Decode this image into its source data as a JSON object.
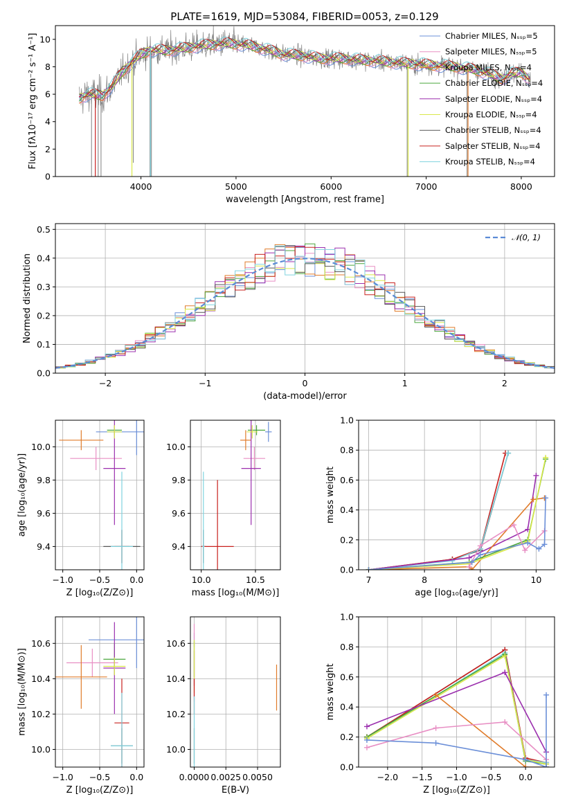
{
  "figure": {
    "title": "PLATE=1619, MJD=53084, FIBERID=0053, z=0.129"
  },
  "chart_data": [
    {
      "id": "spectrum",
      "type": "line",
      "xlabel": "wavelength [Angstrom, rest frame]",
      "ylabel": "Flux [fλ10⁻¹⁷ erg cm⁻² s⁻¹ A⁻¹]",
      "xlim": [
        3100,
        8350
      ],
      "ylim": [
        0,
        11
      ],
      "xticks": [
        4000,
        5000,
        6000,
        7000,
        8000
      ],
      "yticks": [
        0,
        2,
        4,
        6,
        8,
        10
      ],
      "grid": false,
      "legend_position": "right",
      "series": [
        {
          "name": "Chabrier MILES, Nₛₛₚ=5",
          "color": "#6b8fd8"
        },
        {
          "name": "Salpeter MILES, Nₛₛₚ=5",
          "color": "#e88fc4"
        },
        {
          "name": "Kroupa MILES, Nₛₛₚ=4",
          "color": "#e07b2a"
        },
        {
          "name": "Chabrier ELODIE, Nₛₛₚ=4",
          "color": "#4aa63c"
        },
        {
          "name": "Salpeter ELODIE, Nₛₛₚ=4",
          "color": "#9b2fae"
        },
        {
          "name": "Kroupa ELODIE, Nₛₛₚ=4",
          "color": "#d9e84a"
        },
        {
          "name": "Chabrier STELIB, Nₛₛₚ=4",
          "color": "#555555"
        },
        {
          "name": "Salpeter STELIB, Nₛₛₚ=4",
          "color": "#c8201e"
        },
        {
          "name": "Kroupa STELIB, Nₛₛₚ=4",
          "color": "#7fd3df"
        }
      ],
      "data_color": "#7f7f7f",
      "continuum": {
        "x": [
          3350,
          3450,
          3600,
          3700,
          3800,
          3900,
          4000,
          4100,
          4300,
          4500,
          4700,
          4900,
          5100,
          5300,
          5500,
          5700,
          5900,
          6100,
          6300,
          6500,
          6700,
          6900,
          7100,
          7300,
          7500,
          7700,
          7800,
          7900,
          8000,
          8100
        ],
        "y": [
          5.7,
          6.0,
          5.9,
          6.6,
          7.6,
          8.3,
          8.9,
          9.2,
          9.2,
          9.4,
          9.6,
          9.7,
          9.6,
          9.3,
          8.9,
          8.8,
          8.6,
          8.6,
          8.5,
          8.4,
          8.3,
          8.2,
          8.1,
          8.0,
          7.8,
          7.4,
          7.1,
          7.5,
          7.6,
          7.0
        ]
      }
    },
    {
      "id": "residuals",
      "type": "line",
      "xlabel": "(data-model)/error",
      "ylabel": "Normed distribution",
      "xlim": [
        -2.5,
        2.5
      ],
      "ylim": [
        0,
        0.52
      ],
      "xticks": [
        -2,
        -1,
        0,
        1,
        2
      ],
      "yticks": [
        0.0,
        0.1,
        0.2,
        0.3,
        0.4,
        0.5
      ],
      "grid": true,
      "legend_position": "top-right",
      "series": [
        {
          "name": "𝒩(0, 1)",
          "color": "#5b8bd6",
          "style": "dashed"
        }
      ]
    },
    {
      "id": "age-vs-Z",
      "type": "scatter",
      "xlabel": "Z [log₁₀(Z/Z⊙)]",
      "ylabel": "age  [log₁₀(age/yr)]",
      "xlim": [
        -1.1,
        0.1
      ],
      "ylim": [
        9.26,
        10.16
      ],
      "xticks": [
        -1.0,
        -0.5,
        0.0
      ],
      "yticks": [
        9.4,
        9.6,
        9.8,
        10.0
      ],
      "grid": true,
      "points": [
        {
          "color": "#6b8fd8",
          "x": 0.0,
          "y": 10.09,
          "xerr": 0.55,
          "yerr": 0.14
        },
        {
          "color": "#e88fc4",
          "x": -0.55,
          "y": 9.93,
          "xerr": 0.35,
          "yerr": 0.07
        },
        {
          "color": "#e07b2a",
          "x": -0.75,
          "y": 10.04,
          "xerr": 0.3,
          "yerr": 0.06
        },
        {
          "color": "#4aa63c",
          "x": -0.3,
          "y": 10.1,
          "xerr": 0.1,
          "yerr": 0.03
        },
        {
          "color": "#9b2fae",
          "x": -0.3,
          "y": 9.87,
          "xerr": 0.15,
          "yerr": 0.34
        },
        {
          "color": "#d9e84a",
          "x": -0.3,
          "y": 10.09,
          "xerr": 0.1,
          "yerr": 0.04
        },
        {
          "color": "#555555",
          "x": -0.2,
          "y": 9.4,
          "xerr": 0.25,
          "yerr": 0.1
        },
        {
          "color": "#c8201e",
          "x": -0.2,
          "y": 9.4,
          "xerr": 0.1,
          "yerr": 0.1
        },
        {
          "color": "#7fd3df",
          "x": -0.2,
          "y": 9.4,
          "xerr": 0.15,
          "yerr": 0.45
        }
      ]
    },
    {
      "id": "age-vs-mass",
      "type": "scatter",
      "xlabel": "mass [log₁₀(M/M⊙)]",
      "ylabel": "",
      "xlim": [
        9.9,
        10.73
      ],
      "ylim": [
        9.26,
        10.16
      ],
      "xticks": [
        10.0,
        10.5
      ],
      "yticks": [
        9.4,
        9.6,
        9.8,
        10.0
      ],
      "grid": true,
      "points": [
        {
          "color": "#6b8fd8",
          "x": 10.62,
          "y": 10.09,
          "xerr": 0.03,
          "yerr": 0.06
        },
        {
          "color": "#e88fc4",
          "x": 10.49,
          "y": 9.93,
          "xerr": 0.1,
          "yerr": 0.07
        },
        {
          "color": "#e07b2a",
          "x": 10.41,
          "y": 10.04,
          "xerr": 0.05,
          "yerr": 0.06
        },
        {
          "color": "#4aa63c",
          "x": 10.51,
          "y": 10.1,
          "xerr": 0.08,
          "yerr": 0.03
        },
        {
          "color": "#9b2fae",
          "x": 10.46,
          "y": 9.87,
          "xerr": 0.09,
          "yerr": 0.34
        },
        {
          "color": "#d9e84a",
          "x": 10.47,
          "y": 10.09,
          "xerr": 0.05,
          "yerr": 0.04
        },
        {
          "color": "#555555",
          "x": 10.02,
          "y": 9.4,
          "xerr": 0.02,
          "yerr": 0.1
        },
        {
          "color": "#c8201e",
          "x": 10.15,
          "y": 9.4,
          "xerr": 0.15,
          "yerr": 0.4
        },
        {
          "color": "#7fd3df",
          "x": 10.02,
          "y": 9.4,
          "xerr": 0.01,
          "yerr": 0.45
        }
      ]
    },
    {
      "id": "weight-vs-age",
      "type": "line",
      "xlabel": "age  [log₁₀(age/yr)]",
      "ylabel": "mass weight",
      "xlim": [
        6.82,
        10.33
      ],
      "ylim": [
        0,
        1
      ],
      "xticks": [
        7,
        8,
        9,
        10
      ],
      "yticks": [
        0.0,
        0.2,
        0.4,
        0.6,
        0.8,
        1.0
      ],
      "grid": true,
      "series": [
        {
          "color": "#555555",
          "x": [
            7.0,
            8.5,
            9.0,
            9.5
          ],
          "y": [
            0.0,
            0.07,
            0.13,
            0.78
          ]
        },
        {
          "color": "#c8201e",
          "x": [
            7.0,
            8.5,
            9.0,
            9.45
          ],
          "y": [
            0.0,
            0.07,
            0.14,
            0.78
          ]
        },
        {
          "color": "#7fd3df",
          "x": [
            7.0,
            8.5,
            9.0,
            9.5
          ],
          "y": [
            0.0,
            0.06,
            0.14,
            0.78
          ]
        },
        {
          "color": "#9b2fae",
          "x": [
            7.0,
            8.8,
            9.85,
            10.0
          ],
          "y": [
            0.0,
            0.08,
            0.27,
            0.63
          ]
        },
        {
          "color": "#e07b2a",
          "x": [
            7.0,
            8.8,
            8.85,
            9.95,
            10.15
          ],
          "y": [
            0.0,
            0.02,
            0.0,
            0.47,
            0.48
          ]
        },
        {
          "color": "#4aa63c",
          "x": [
            7.0,
            8.8,
            9.85,
            10.17
          ],
          "y": [
            0.0,
            0.05,
            0.2,
            0.74
          ]
        },
        {
          "color": "#d9e84a",
          "x": [
            7.0,
            8.8,
            9.85,
            10.17
          ],
          "y": [
            0.0,
            0.04,
            0.19,
            0.75
          ]
        },
        {
          "color": "#e88fc4",
          "x": [
            8.8,
            9.0,
            9.6,
            9.8,
            10.15
          ],
          "y": [
            0.02,
            0.16,
            0.3,
            0.13,
            0.26
          ]
        },
        {
          "color": "#6b8fd8",
          "x": [
            7.0,
            8.85,
            9.0,
            9.85,
            10.05,
            10.15,
            10.17
          ],
          "y": [
            0.0,
            0.05,
            0.1,
            0.18,
            0.14,
            0.17,
            0.48
          ]
        }
      ]
    },
    {
      "id": "mass-vs-Z",
      "type": "scatter",
      "xlabel": "Z [log₁₀(Z/Z⊙)]",
      "ylabel": "mass [log₁₀(M/M⊙)]",
      "xlim": [
        -1.1,
        0.1
      ],
      "ylim": [
        9.9,
        10.75
      ],
      "xticks": [
        -1.0,
        -0.5,
        0.0
      ],
      "yticks": [
        10.0,
        10.2,
        10.4,
        10.6
      ],
      "grid": true,
      "points": [
        {
          "color": "#6b8fd8",
          "x": 0.0,
          "y": 10.62,
          "xerr": 0.65,
          "yerr": 0.16
        },
        {
          "color": "#e88fc4",
          "x": -0.6,
          "y": 10.49,
          "xerr": 0.35,
          "yerr": 0.08
        },
        {
          "color": "#e07b2a",
          "x": -0.75,
          "y": 10.41,
          "xerr": 0.35,
          "yerr": 0.18
        },
        {
          "color": "#4aa63c",
          "x": -0.3,
          "y": 10.51,
          "xerr": 0.15,
          "yerr": 0.09
        },
        {
          "color": "#9b2fae",
          "x": -0.3,
          "y": 10.46,
          "xerr": 0.15,
          "yerr": 0.26
        },
        {
          "color": "#d9e84a",
          "x": -0.3,
          "y": 10.47,
          "xerr": 0.15,
          "yerr": 0.05
        },
        {
          "color": "#555555",
          "x": -0.2,
          "y": 10.02,
          "xerr": 0.15,
          "yerr": 0.1
        },
        {
          "color": "#c8201e",
          "x": -0.2,
          "y": 10.15,
          "xerr": 0.1,
          "yerr": 0.25
        },
        {
          "color": "#7fd3df",
          "x": -0.2,
          "y": 10.02,
          "xerr": 0.15,
          "yerr": 0.3
        }
      ]
    },
    {
      "id": "mass-vs-ebv",
      "type": "scatter",
      "xlabel": "E(B-V)",
      "ylabel": "",
      "xlim": [
        -0.0003,
        0.0068
      ],
      "ylim": [
        9.9,
        10.75
      ],
      "xticks": [
        0.0,
        0.0025,
        0.005
      ],
      "yticks": [
        10.0,
        10.2,
        10.4,
        10.6
      ],
      "grid": true,
      "points": [
        {
          "color": "#6b8fd8",
          "x": 0.0,
          "y": 10.62,
          "yerr": 0.04
        },
        {
          "color": "#e88fc4",
          "x": 0.0,
          "y": 10.49,
          "yerr": 0.22
        },
        {
          "color": "#e07b2a",
          "x": 0.0065,
          "y": 10.35,
          "yerr": 0.13
        },
        {
          "color": "#4aa63c",
          "x": 0.0,
          "y": 10.51,
          "yerr": 0.1
        },
        {
          "color": "#9b2fae",
          "x": 0.0,
          "y": 10.46,
          "yerr": 0.1
        },
        {
          "color": "#d9e84a",
          "x": 0.0,
          "y": 10.47,
          "yerr": 0.15
        },
        {
          "color": "#555555",
          "x": 0.0,
          "y": 10.02,
          "yerr": 0.1
        },
        {
          "color": "#c8201e",
          "x": 0.0,
          "y": 10.3,
          "yerr": 0.1
        },
        {
          "color": "#7fd3df",
          "x": 0.0,
          "y": 10.1,
          "yerr": 0.2
        }
      ]
    },
    {
      "id": "weight-vs-Z",
      "type": "line",
      "xlabel": "Z [log₁₀(Z/Z⊙)]",
      "ylabel": "mass weight",
      "xlim": [
        -2.42,
        0.42
      ],
      "ylim": [
        0,
        1
      ],
      "xticks": [
        -2.0,
        -1.5,
        -1.0,
        -0.5,
        0.0
      ],
      "yticks": [
        0.0,
        0.2,
        0.4,
        0.6,
        0.8,
        1.0
      ],
      "grid": true,
      "series": [
        {
          "color": "#555555",
          "x": [
            -2.3,
            -0.3,
            0.0,
            0.3
          ],
          "y": [
            0.2,
            0.78,
            0.05,
            0.02
          ]
        },
        {
          "color": "#c8201e",
          "x": [
            -2.3,
            -0.3,
            0.0,
            0.3
          ],
          "y": [
            0.2,
            0.78,
            0.06,
            0.03
          ]
        },
        {
          "color": "#7fd3df",
          "x": [
            -2.3,
            -0.3,
            0.0,
            0.3
          ],
          "y": [
            0.19,
            0.76,
            0.05,
            0.03
          ]
        },
        {
          "color": "#4aa63c",
          "x": [
            -2.3,
            -0.3,
            0.0,
            0.3
          ],
          "y": [
            0.2,
            0.75,
            0.04,
            0.02
          ]
        },
        {
          "color": "#d9e84a",
          "x": [
            -2.3,
            -0.3,
            0.0,
            0.3
          ],
          "y": [
            0.19,
            0.74,
            0.05,
            0.02
          ]
        },
        {
          "color": "#9b2fae",
          "x": [
            -2.3,
            -0.3,
            0.3
          ],
          "y": [
            0.27,
            0.63,
            0.1
          ]
        },
        {
          "color": "#e07b2a",
          "x": [
            -1.3,
            0.0,
            0.3
          ],
          "y": [
            0.48,
            0.0,
            0.0
          ]
        },
        {
          "color": "#e88fc4",
          "x": [
            -2.3,
            -1.3,
            -0.3,
            0.3
          ],
          "y": [
            0.13,
            0.26,
            0.3,
            0.05
          ]
        },
        {
          "color": "#6b8fd8",
          "x": [
            -2.3,
            -1.3,
            0.0,
            0.3,
            0.3
          ],
          "y": [
            0.18,
            0.16,
            0.05,
            0.0,
            0.48
          ]
        }
      ]
    }
  ]
}
